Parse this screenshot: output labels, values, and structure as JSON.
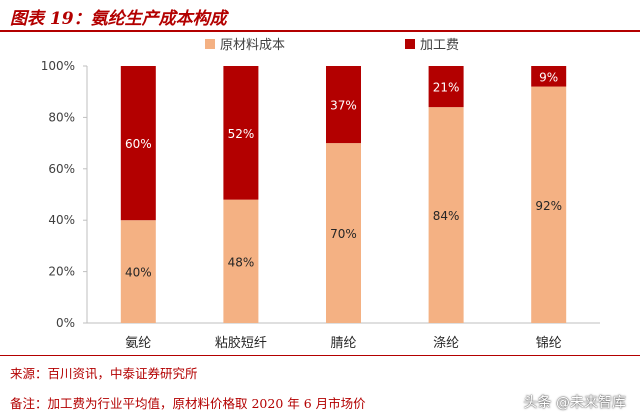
{
  "title": "图表 19：氨纶生产成本构成",
  "source": "来源：百川资讯，中泰证券研究所",
  "note": "备注：加工费为行业平均值，原材料价格取 2020 年 6 月市场价",
  "watermark": "头条 @未来智库",
  "chart_data": {
    "type": "bar",
    "stacked": true,
    "categories": [
      "氨纶",
      "粘胶短纤",
      "腈纶",
      "涤纶",
      "锦纶"
    ],
    "series": [
      {
        "name": "原材料成本",
        "values": [
          40,
          48,
          70,
          84,
          92
        ],
        "labels": [
          "40%",
          "48%",
          "70%",
          "84%",
          "92%"
        ],
        "color": "#f4b183"
      },
      {
        "name": "加工费",
        "values": [
          60,
          52,
          37,
          21,
          9
        ],
        "labels": [
          "60%",
          "52%",
          "37%",
          "21%",
          "9%"
        ],
        "color": "#b30000"
      }
    ],
    "ylim": [
      0,
      100
    ],
    "yticks": [
      0,
      20,
      40,
      60,
      80,
      100
    ],
    "ytick_labels": [
      "0%",
      "20%",
      "40%",
      "60%",
      "80%",
      "100%"
    ],
    "legend_position": "top-center",
    "grid": false
  }
}
